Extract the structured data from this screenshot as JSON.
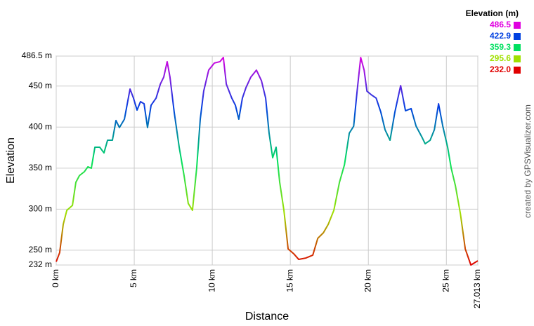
{
  "chart_data": {
    "type": "line",
    "x_label": "Distance",
    "y_label": "Elevation",
    "legend_title": "Elevation (m)",
    "credit": "created by GPSVisualizer.com",
    "xlim": [
      0,
      27.013
    ],
    "ylim": [
      232,
      486.5
    ],
    "xticks": [
      {
        "value": 0,
        "label": "0 km"
      },
      {
        "value": 5,
        "label": "5 km"
      },
      {
        "value": 10,
        "label": "10 km"
      },
      {
        "value": 15,
        "label": "15 km"
      },
      {
        "value": 20,
        "label": "20 km"
      },
      {
        "value": 25,
        "label": "25 km"
      },
      {
        "value": 27.013,
        "label": "27.013 km"
      }
    ],
    "yticks": [
      {
        "value": 232,
        "label": "232 m"
      },
      {
        "value": 250,
        "label": "250 m"
      },
      {
        "value": 300,
        "label": "300 m"
      },
      {
        "value": 350,
        "label": "350 m"
      },
      {
        "value": 400,
        "label": "400 m"
      },
      {
        "value": 450,
        "label": "450 m"
      },
      {
        "value": 486.5,
        "label": "486.5 m"
      }
    ],
    "grid": true,
    "color_scale": [
      {
        "value": 486.5,
        "color": "#e000e0"
      },
      {
        "value": 422.9,
        "color": "#0040e0"
      },
      {
        "value": 359.3,
        "color": "#00e060"
      },
      {
        "value": 295.6,
        "color": "#a0e000"
      },
      {
        "value": 232,
        "label": "232.0",
        "color": "#e00000"
      }
    ],
    "x": [
      0,
      0.22,
      0.45,
      0.68,
      1.04,
      1.26,
      1.49,
      1.8,
      2.03,
      2.25,
      2.48,
      2.79,
      3.06,
      3.29,
      3.6,
      3.83,
      4.05,
      4.37,
      4.73,
      4.95,
      5.18,
      5.4,
      5.63,
      5.85,
      6.08,
      6.4,
      6.67,
      6.89,
      7.11,
      7.29,
      7.56,
      7.88,
      8.19,
      8.46,
      8.73,
      9.0,
      9.23,
      9.45,
      9.77,
      10.13,
      10.49,
      10.71,
      10.9,
      11.25,
      11.48,
      11.7,
      11.93,
      12.16,
      12.47,
      12.83,
      13.15,
      13.42,
      13.64,
      13.87,
      14.09,
      14.32,
      14.59,
      14.86,
      15.22,
      15.54,
      15.99,
      16.44,
      16.76,
      17.12,
      17.43,
      17.79,
      18.15,
      18.47,
      18.78,
      19.06,
      19.28,
      19.51,
      19.73,
      19.91,
      20.18,
      20.5,
      20.8,
      21.07,
      21.39,
      21.7,
      22.07,
      22.38,
      22.74,
      23.06,
      23.42,
      23.64,
      23.96,
      24.23,
      24.5,
      24.77,
      25.08,
      25.31,
      25.58,
      25.9,
      26.21,
      26.57,
      27.013
    ],
    "values": [
      236,
      247,
      281.5,
      298.6,
      304.6,
      332.8,
      341,
      345.6,
      351.6,
      349.9,
      375.5,
      375.5,
      368.6,
      384,
      384,
      408,
      399.4,
      409.6,
      446.4,
      435.3,
      420.7,
      431,
      428.4,
      399.4,
      426.7,
      435.3,
      452.3,
      460.9,
      479.7,
      460.9,
      418.2,
      375.5,
      341.3,
      307,
      298.6,
      349.9,
      409.6,
      443.8,
      469.4,
      478,
      479.7,
      484.8,
      452.3,
      435.3,
      426.7,
      409.6,
      435.3,
      448.1,
      460.9,
      469.4,
      456.6,
      435.3,
      392.6,
      362.7,
      375.5,
      332.8,
      298.6,
      251.6,
      245.7,
      238.8,
      240.5,
      244,
      264.5,
      271.3,
      281.5,
      298.6,
      332.8,
      354.1,
      392.6,
      401.1,
      443.8,
      484.8,
      469.4,
      443.8,
      439.5,
      435.3,
      418.2,
      396.8,
      384,
      418.2,
      450.6,
      419.9,
      422.5,
      401.1,
      388.3,
      379.7,
      384,
      396.8,
      428.4,
      401.1,
      375.5,
      349.9,
      328.5,
      294.3,
      251.6,
      232,
      237.1
    ]
  }
}
